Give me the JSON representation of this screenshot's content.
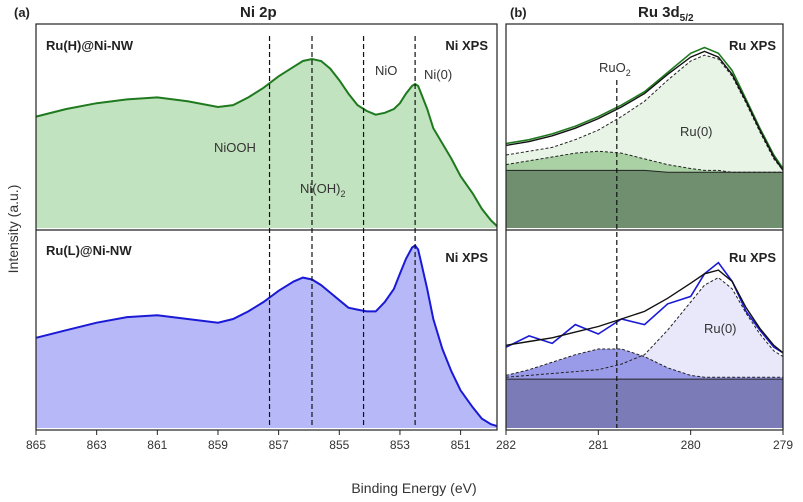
{
  "figure": {
    "xlabel": "Binding Energy (eV)",
    "ylabel": "Intensity (a.u.)"
  },
  "colors": {
    "green_line": "#1f7a1f",
    "green_fill": "#c2e3bf",
    "blue_line": "#1a1ad6",
    "blue_fill": "#b7b8f7",
    "ru_h_env": "#e8f4e6",
    "ru_h_ruo2": "#a9d1a4",
    "ru_h_bg": "#6f8f6f",
    "ru_l_env": "#e8e8fa",
    "ru_l_ruo2": "#9a9be8",
    "ru_l_bg": "#7b7bb8"
  },
  "chart_data": [
    {
      "type": "area",
      "panel": "(a)",
      "title": "Ni 2p",
      "x_ticks": [
        865,
        863,
        861,
        859,
        857,
        855,
        853,
        851
      ],
      "xlim": [
        865,
        849.8
      ],
      "ref_lines": [
        {
          "label": "NiOOH",
          "x": 857.3
        },
        {
          "label": "Ni(OH)",
          "sub": "2",
          "x": 855.9
        },
        {
          "label": "NiO",
          "x": 854.2
        },
        {
          "label": "Ni(0)",
          "x": 852.5
        }
      ],
      "subplots": [
        {
          "sample": "Ru(H)@Ni-NW",
          "tag": "Ni XPS",
          "x": [
            865,
            864,
            863,
            862,
            861,
            860,
            859,
            858.5,
            858,
            857.5,
            857,
            856.5,
            856.2,
            855.9,
            855.6,
            855.3,
            855,
            854.7,
            854.4,
            854.1,
            853.8,
            853.5,
            853.2,
            853,
            852.8,
            852.6,
            852.5,
            852.4,
            852.3,
            852.1,
            851.9,
            851.6,
            851.3,
            851,
            850.6,
            850.3,
            850,
            849.8
          ],
          "y": [
            0.58,
            0.62,
            0.65,
            0.67,
            0.68,
            0.66,
            0.63,
            0.64,
            0.68,
            0.73,
            0.79,
            0.84,
            0.87,
            0.88,
            0.87,
            0.83,
            0.77,
            0.7,
            0.64,
            0.61,
            0.59,
            0.6,
            0.62,
            0.65,
            0.7,
            0.74,
            0.75,
            0.74,
            0.7,
            0.62,
            0.52,
            0.44,
            0.36,
            0.27,
            0.18,
            0.1,
            0.04,
            0.01
          ]
        },
        {
          "sample": "Ru(L)@Ni-NW",
          "tag": "Ni XPS",
          "x": [
            865,
            864,
            863,
            862,
            861,
            860,
            859,
            858.5,
            858,
            857.5,
            857,
            856.5,
            856.2,
            855.9,
            855.6,
            855.3,
            855,
            854.7,
            854.4,
            854.1,
            853.8,
            853.5,
            853.2,
            853,
            852.8,
            852.6,
            852.5,
            852.4,
            852.3,
            852.1,
            851.9,
            851.6,
            851.3,
            851,
            850.6,
            850.3,
            850,
            849.8
          ],
          "y": [
            0.48,
            0.52,
            0.56,
            0.59,
            0.6,
            0.58,
            0.56,
            0.58,
            0.62,
            0.67,
            0.73,
            0.78,
            0.8,
            0.79,
            0.76,
            0.72,
            0.68,
            0.64,
            0.63,
            0.62,
            0.62,
            0.67,
            0.74,
            0.82,
            0.9,
            0.96,
            0.97,
            0.95,
            0.88,
            0.74,
            0.58,
            0.42,
            0.3,
            0.2,
            0.11,
            0.05,
            0.02,
            0.01
          ]
        }
      ]
    },
    {
      "type": "area",
      "panel": "(b)",
      "title": "Ru 3d",
      "title_sub": "5/2",
      "x_ticks": [
        282,
        281,
        280,
        279
      ],
      "xlim": [
        282,
        279
      ],
      "ref_lines": [
        {
          "label": "RuO",
          "sub": "2",
          "x": 280.8
        }
      ],
      "subplots": [
        {
          "tag": "Ru XPS",
          "component_label": "Ru(0)",
          "x": [
            282,
            281.75,
            281.5,
            281.25,
            281,
            280.75,
            280.5,
            280.25,
            280,
            279.85,
            279.7,
            279.55,
            279.4,
            279.25,
            279.1,
            279
          ],
          "data": [
            0.44,
            0.46,
            0.49,
            0.53,
            0.58,
            0.64,
            0.71,
            0.81,
            0.91,
            0.94,
            0.91,
            0.82,
            0.67,
            0.52,
            0.38,
            0.31
          ],
          "fit": [
            0.43,
            0.45,
            0.48,
            0.52,
            0.57,
            0.63,
            0.7,
            0.8,
            0.89,
            0.92,
            0.89,
            0.8,
            0.66,
            0.51,
            0.37,
            0.3
          ],
          "ru0": [
            0.38,
            0.4,
            0.42,
            0.46,
            0.51,
            0.58,
            0.66,
            0.77,
            0.87,
            0.9,
            0.88,
            0.79,
            0.65,
            0.5,
            0.36,
            0.3
          ],
          "ruo2": [
            0.33,
            0.35,
            0.37,
            0.39,
            0.4,
            0.39,
            0.36,
            0.33,
            0.31,
            0.3,
            0.3,
            0.29,
            0.29,
            0.29,
            0.29,
            0.29
          ],
          "background": [
            0.3,
            0.3,
            0.3,
            0.3,
            0.3,
            0.3,
            0.3,
            0.29,
            0.29,
            0.29,
            0.29,
            0.29,
            0.29,
            0.29,
            0.29,
            0.29
          ]
        },
        {
          "tag": "Ru XPS",
          "component_label": "Ru(0)",
          "x": [
            282,
            281.75,
            281.5,
            281.25,
            281,
            280.75,
            280.5,
            280.25,
            280,
            279.85,
            279.7,
            279.55,
            279.4,
            279.25,
            279.1,
            279
          ],
          "data": [
            0.43,
            0.49,
            0.45,
            0.55,
            0.5,
            0.58,
            0.55,
            0.66,
            0.7,
            0.82,
            0.88,
            0.78,
            0.62,
            0.52,
            0.43,
            0.4
          ],
          "fit": [
            0.44,
            0.46,
            0.48,
            0.51,
            0.54,
            0.58,
            0.62,
            0.69,
            0.77,
            0.82,
            0.84,
            0.78,
            0.64,
            0.53,
            0.44,
            0.4
          ],
          "ru0": [
            0.27,
            0.28,
            0.29,
            0.3,
            0.31,
            0.34,
            0.39,
            0.52,
            0.67,
            0.76,
            0.8,
            0.74,
            0.61,
            0.5,
            0.41,
            0.38
          ],
          "ruo2": [
            0.28,
            0.31,
            0.35,
            0.39,
            0.42,
            0.42,
            0.38,
            0.32,
            0.28,
            0.27,
            0.27,
            0.27,
            0.27,
            0.27,
            0.27,
            0.27
          ],
          "background": [
            0.26,
            0.26,
            0.26,
            0.26,
            0.26,
            0.26,
            0.26,
            0.26,
            0.26,
            0.26,
            0.26,
            0.26,
            0.26,
            0.26,
            0.26,
            0.26
          ]
        }
      ]
    }
  ]
}
